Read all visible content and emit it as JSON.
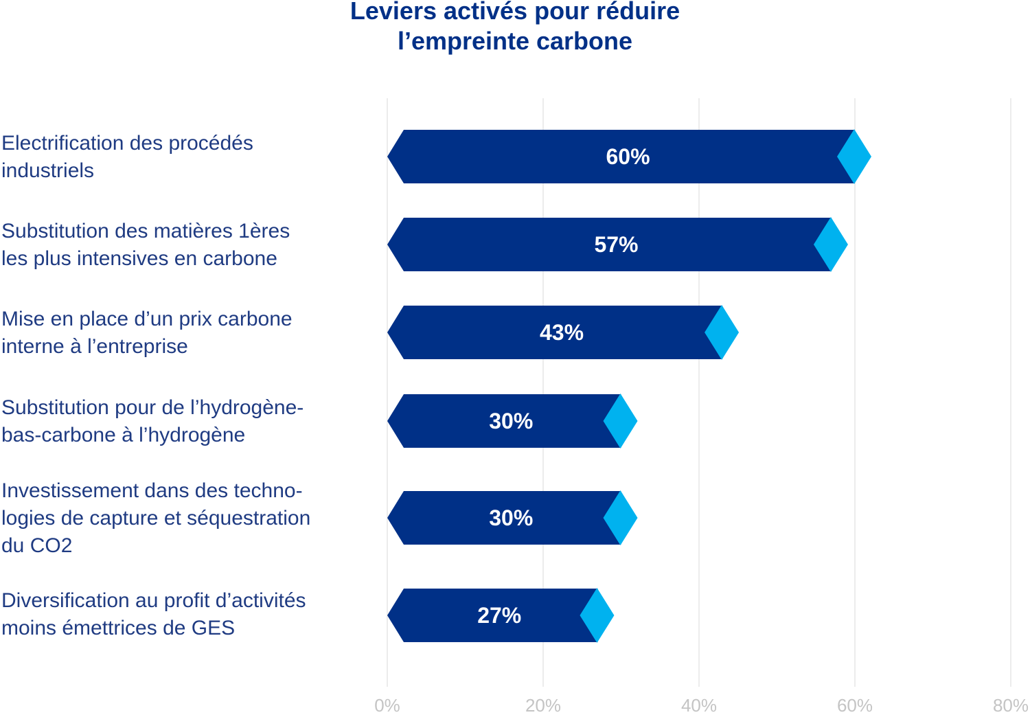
{
  "chart_data": {
    "type": "bar",
    "orientation": "horizontal",
    "title_lines": [
      "Leviers activés pour réduire",
      "l’empreinte carbone"
    ],
    "categories": [
      [
        "Electrification des procédés",
        "industriels"
      ],
      [
        "Substitution des matières 1ères",
        "les plus intensives en carbone"
      ],
      [
        "Mise en place d’un prix carbone",
        "interne à l’entreprise"
      ],
      [
        "Substitution pour de l’hydrogène-",
        "bas-carbone à l’hydrogène"
      ],
      [
        "Investissement dans des techno-",
        "logies de capture et séquestration",
        "du CO2"
      ],
      [
        "Diversification au profit d’activités",
        "moins émettrices de GES"
      ]
    ],
    "values": [
      60,
      57,
      43,
      30,
      30,
      27
    ],
    "value_labels": [
      "60%",
      "57%",
      "43%",
      "30%",
      "30%",
      "27%"
    ],
    "xlim": [
      0,
      80
    ],
    "x_ticks": [
      0,
      20,
      40,
      60,
      80
    ],
    "x_tick_labels": [
      "0%",
      "20%",
      "40%",
      "60%",
      "80%"
    ],
    "grid": true,
    "colors": {
      "bar": "#003087",
      "marker": "#00B2EF",
      "grid": "#e6e6e6",
      "tick": "#c4c4c4",
      "title": "#003087",
      "label": "#1f3b82"
    }
  }
}
